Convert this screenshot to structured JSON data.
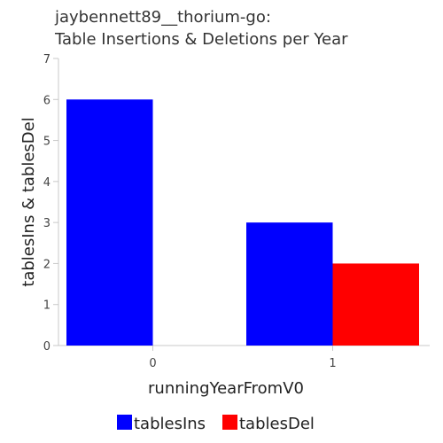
{
  "chart_data": {
    "type": "bar",
    "title_lines": [
      "jaybennett89__thorium-go:",
      "Table Insertions & Deletions per Year"
    ],
    "xlabel": "runningYearFromV0",
    "ylabel": "tablesIns & tablesDel",
    "categories": [
      "0",
      "1"
    ],
    "series": [
      {
        "name": "tablesIns",
        "values": [
          6,
          3
        ],
        "color": "#0000ff"
      },
      {
        "name": "tablesDel",
        "values": [
          0,
          2
        ],
        "color": "#ff0000"
      }
    ],
    "ylim": [
      0,
      7
    ],
    "yticks": [
      0,
      1,
      2,
      3,
      4,
      5,
      6,
      7
    ],
    "grid": false,
    "legend_position": "bottom-center"
  }
}
